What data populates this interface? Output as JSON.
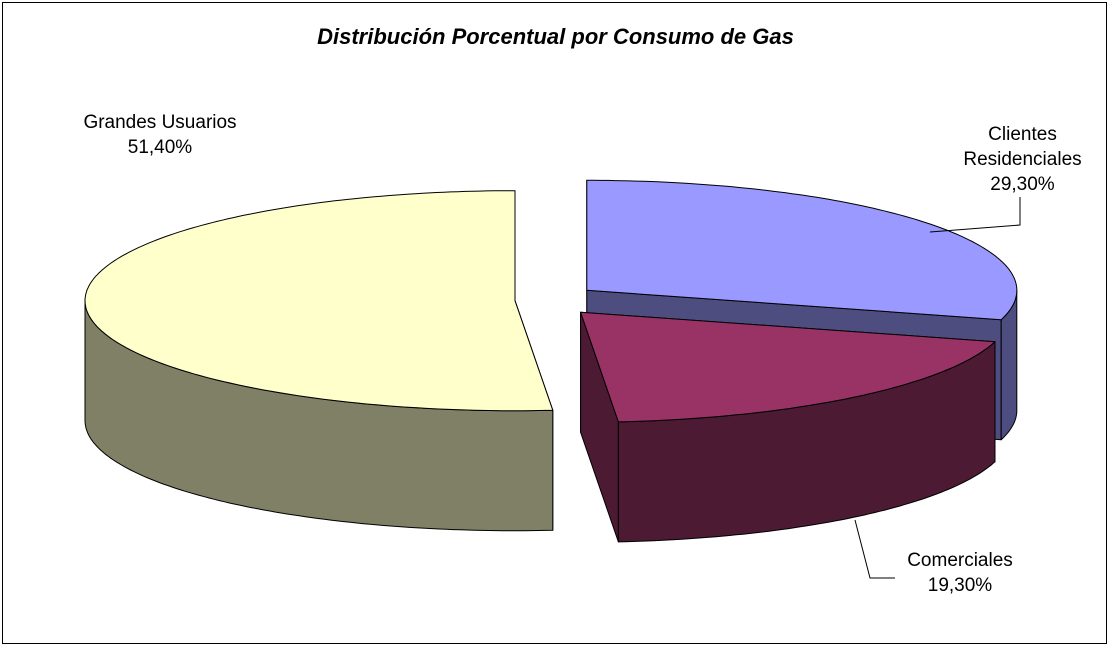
{
  "chart_data": {
    "type": "pie",
    "title": "Distribución Porcentual por Consumo de Gas",
    "categories": [
      "Clientes Residenciales",
      "Comerciales",
      "Grandes Usuarios"
    ],
    "values": [
      29.3,
      19.3,
      51.4
    ],
    "value_labels": [
      "29,30%",
      "19,30%",
      "51,40%"
    ],
    "colors": [
      "#9999ff",
      "#993366",
      "#ffffcc"
    ],
    "exploded": true,
    "three_d": true
  }
}
